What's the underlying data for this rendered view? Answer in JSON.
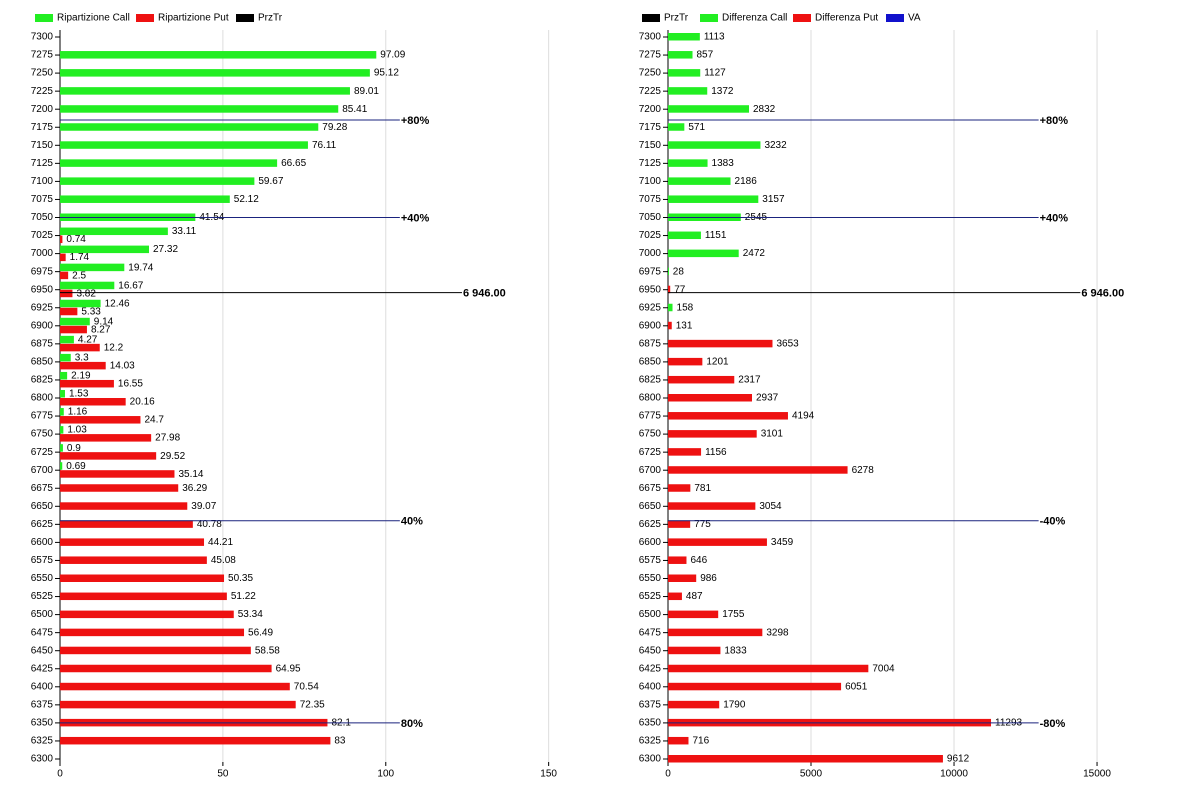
{
  "chart_data": [
    {
      "type": "bar",
      "orientation": "horizontal",
      "y": [
        7300,
        7275,
        7250,
        7225,
        7200,
        7175,
        7150,
        7125,
        7100,
        7075,
        7050,
        7025,
        7000,
        6975,
        6950,
        6925,
        6900,
        6875,
        6850,
        6825,
        6800,
        6775,
        6750,
        6725,
        6700,
        6675,
        6650,
        6625,
        6600,
        6575,
        6550,
        6525,
        6500,
        6475,
        6450,
        6425,
        6400,
        6375,
        6350,
        6325,
        6300
      ],
      "series": [
        {
          "name": "Ripartizione Call",
          "color": "#22ee22",
          "values": [
            null,
            97.09,
            95.12,
            89.01,
            85.41,
            79.28,
            76.11,
            66.65,
            59.67,
            52.12,
            41.54,
            33.11,
            27.32,
            19.74,
            16.67,
            12.46,
            9.14,
            4.27,
            3.3,
            2.19,
            1.53,
            1.16,
            1.03,
            0.9,
            0.69,
            null,
            null,
            null,
            null,
            null,
            null,
            null,
            null,
            null,
            null,
            null,
            null,
            null,
            null,
            null,
            null
          ]
        },
        {
          "name": "Ripartizione Put",
          "color": "#ee1111",
          "values": [
            null,
            null,
            null,
            null,
            null,
            null,
            null,
            null,
            null,
            null,
            null,
            0.74,
            1.74,
            2.5,
            3.82,
            5.33,
            8.27,
            12.2,
            14.03,
            16.55,
            20.16,
            24.7,
            27.98,
            29.52,
            35.14,
            36.29,
            39.07,
            40.78,
            44.21,
            45.08,
            50.35,
            51.22,
            53.34,
            56.49,
            58.58,
            64.95,
            70.54,
            72.35,
            82.1,
            83,
            null
          ]
        },
        {
          "name": "PrzTr",
          "color": "#000000",
          "level": {
            "value": 6946,
            "label": "6 946.00"
          }
        }
      ],
      "reference_lines": [
        {
          "value": 7185,
          "label": "+80%"
        },
        {
          "value": 7050,
          "label": "+40%"
        },
        {
          "value": 6630,
          "label": "40%"
        },
        {
          "value": 6350,
          "label": "80%"
        }
      ],
      "reference_color": "#1a237e",
      "xlim": [
        0,
        163
      ],
      "xticks": [
        0,
        50,
        100,
        150
      ],
      "ylim": [
        6300,
        7300
      ],
      "yticks": [
        7300,
        7275,
        7250,
        7225,
        7200,
        7175,
        7150,
        7125,
        7100,
        7075,
        7050,
        7025,
        7000,
        6975,
        6950,
        6925,
        6900,
        6875,
        6850,
        6825,
        6800,
        6775,
        6750,
        6725,
        6700,
        6675,
        6650,
        6625,
        6600,
        6575,
        6550,
        6525,
        6500,
        6475,
        6450,
        6425,
        6400,
        6375,
        6350,
        6325,
        6300
      ],
      "grid": true
    },
    {
      "type": "bar",
      "orientation": "horizontal",
      "y": [
        7300,
        7275,
        7250,
        7225,
        7200,
        7175,
        7150,
        7125,
        7100,
        7075,
        7050,
        7025,
        7000,
        6975,
        6950,
        6925,
        6900,
        6875,
        6850,
        6825,
        6800,
        6775,
        6750,
        6725,
        6700,
        6675,
        6650,
        6625,
        6600,
        6575,
        6550,
        6525,
        6500,
        6475,
        6450,
        6425,
        6400,
        6375,
        6350,
        6325,
        6300
      ],
      "series": [
        {
          "name": "PrzTr",
          "color": "#000000",
          "level": {
            "value": 6946,
            "label": "6 946.00"
          }
        },
        {
          "name": "Differenza Call",
          "color": "#22ee22",
          "values": [
            1113,
            857,
            1127,
            1372,
            2832,
            571,
            3232,
            1383,
            2186,
            3157,
            2545,
            1151,
            2472,
            28,
            null,
            158,
            null,
            null,
            null,
            null,
            null,
            null,
            null,
            null,
            null,
            null,
            null,
            null,
            null,
            null,
            null,
            null,
            null,
            null,
            null,
            null,
            null,
            null,
            null,
            null,
            null
          ]
        },
        {
          "name": "Differenza Put",
          "color": "#ee1111",
          "values": [
            null,
            null,
            null,
            null,
            null,
            null,
            null,
            null,
            null,
            null,
            null,
            null,
            null,
            null,
            77,
            null,
            131,
            3653,
            1201,
            2317,
            2937,
            4194,
            3101,
            1156,
            6278,
            781,
            3054,
            775,
            3459,
            646,
            986,
            487,
            1755,
            3298,
            1833,
            7004,
            6051,
            1790,
            11293,
            716,
            9612
          ]
        },
        {
          "name": "VA",
          "color": "#1111cc"
        }
      ],
      "reference_lines": [
        {
          "value": 7185,
          "label": "+80%"
        },
        {
          "value": 7050,
          "label": "+40%"
        },
        {
          "value": 6630,
          "label": "-40%"
        },
        {
          "value": 6350,
          "label": "-80%"
        }
      ],
      "reference_color": "#1a237e",
      "xlim": [
        0,
        18250
      ],
      "xticks": [
        0,
        5000,
        10000,
        15000
      ],
      "ylim": [
        6300,
        7300
      ],
      "yticks": [
        7300,
        7275,
        7250,
        7225,
        7200,
        7175,
        7150,
        7125,
        7100,
        7075,
        7050,
        7025,
        7000,
        6975,
        6950,
        6925,
        6900,
        6875,
        6850,
        6825,
        6800,
        6775,
        6750,
        6725,
        6700,
        6675,
        6650,
        6625,
        6600,
        6575,
        6550,
        6525,
        6500,
        6475,
        6450,
        6425,
        6400,
        6375,
        6350,
        6325,
        6300
      ],
      "grid": true
    }
  ]
}
